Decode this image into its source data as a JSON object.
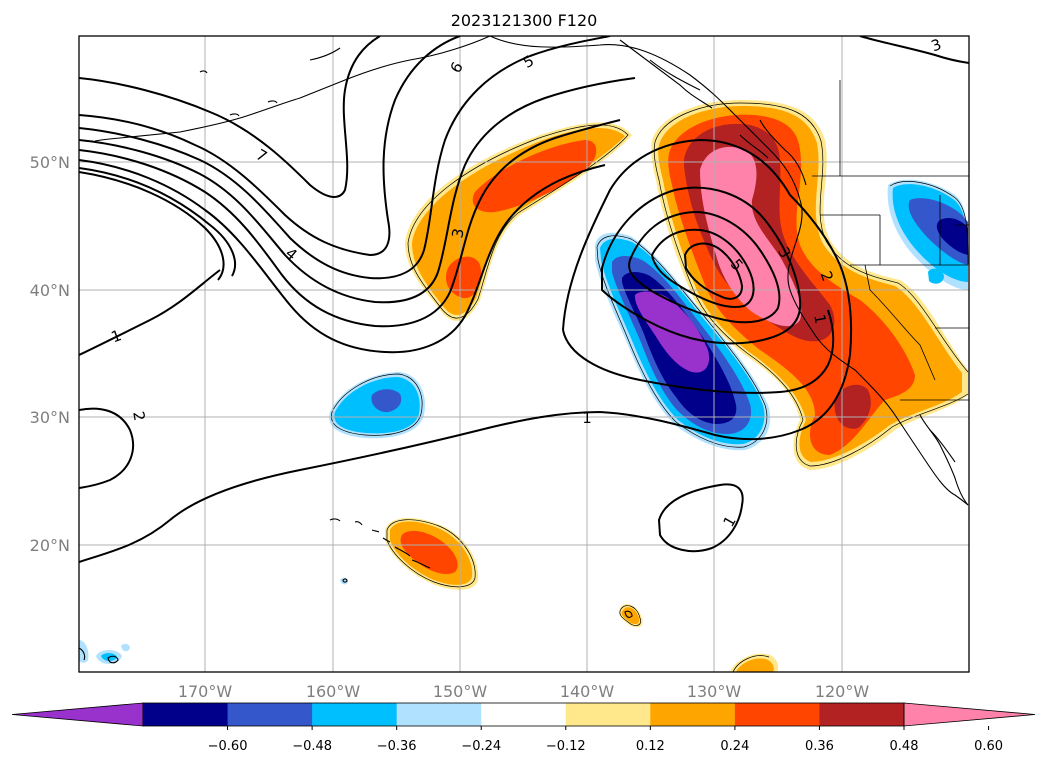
{
  "title": "2023121300 F120",
  "map": {
    "lat_labels": [
      "50°N",
      "40°N",
      "30°N",
      "20°N"
    ],
    "lon_labels": [
      "170°W",
      "160°W",
      "150°W",
      "140°W",
      "130°W",
      "120°W"
    ],
    "gridlines": true
  },
  "colorbar": {
    "ticks": [
      "−0.60",
      "−0.48",
      "−0.36",
      "−0.24",
      "−0.12",
      "0.12",
      "0.24",
      "0.36",
      "0.48",
      "0.60"
    ],
    "colors": [
      "#9932cc",
      "#00008b",
      "#3457cc",
      "#00bfff",
      "#b0e2ff",
      "#ffffff",
      "#ffe88c",
      "#ffa500",
      "#ff4500",
      "#b22222",
      "#ff82ab"
    ],
    "extend": "both"
  },
  "contours": {
    "labels": [
      "7",
      "6",
      "5",
      "4",
      "3",
      "1",
      "2",
      "1",
      "5",
      "3",
      "2",
      "1",
      "1",
      "3"
    ]
  }
}
